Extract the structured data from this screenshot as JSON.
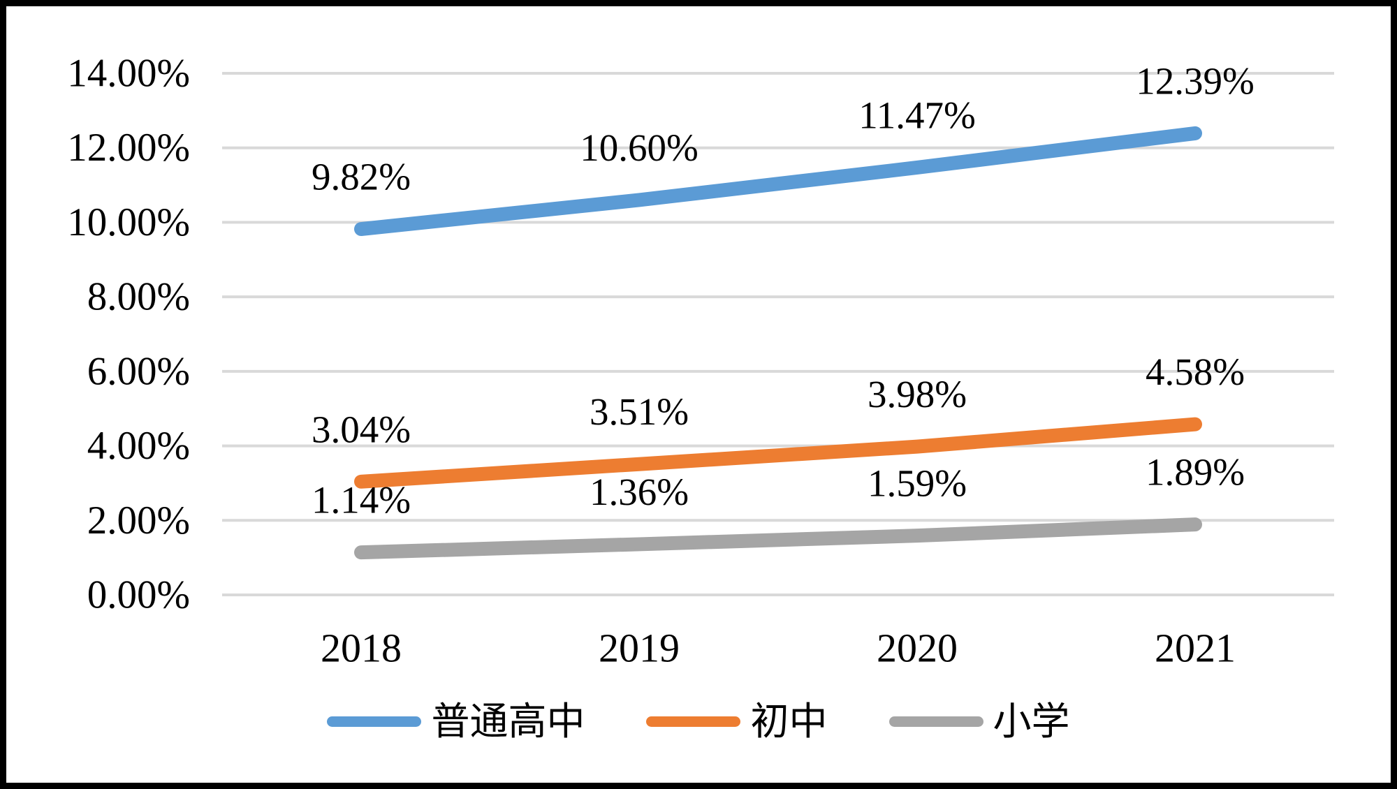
{
  "chart_data": {
    "type": "line",
    "title": "",
    "categories": [
      "2018",
      "2019",
      "2020",
      "2021"
    ],
    "series": [
      {
        "name": "普通高中",
        "color": "#5B9BD5",
        "values": [
          9.82,
          10.6,
          11.47,
          12.39
        ],
        "labels": [
          "9.82%",
          "10.60%",
          "11.47%",
          "12.39%"
        ]
      },
      {
        "name": "初中",
        "color": "#ED7D31",
        "values": [
          3.04,
          3.51,
          3.98,
          4.58
        ],
        "labels": [
          "3.04%",
          "3.51%",
          "3.98%",
          "4.58%"
        ]
      },
      {
        "name": "小学",
        "color": "#A5A5A5",
        "values": [
          1.14,
          1.36,
          1.59,
          1.89
        ],
        "labels": [
          "1.14%",
          "1.36%",
          "1.59%",
          "1.89%"
        ]
      }
    ],
    "y_axis": {
      "min": 0,
      "max": 14,
      "step": 2,
      "tick_labels": [
        "0.00%",
        "2.00%",
        "4.00%",
        "6.00%",
        "8.00%",
        "10.00%",
        "12.00%",
        "14.00%"
      ]
    },
    "x_axis": {
      "tick_labels": [
        "2018",
        "2019",
        "2020",
        "2021"
      ]
    },
    "legend_position": "bottom",
    "grid": true,
    "colors": {
      "gridline": "#D9D9D9",
      "text": "#000000",
      "border": "#000000",
      "background": "#FFFFFF"
    }
  }
}
